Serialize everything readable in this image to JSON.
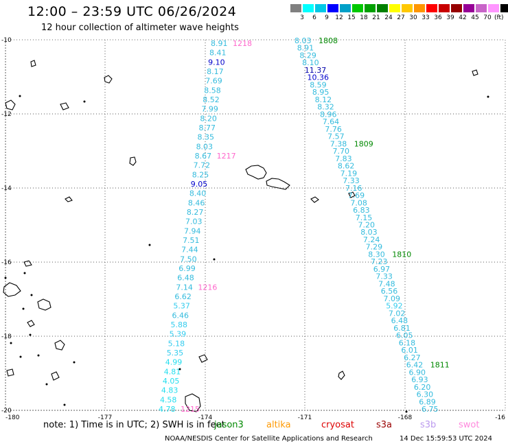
{
  "header": {
    "title": "12:00 – 23:59 UTC 06/26/2024",
    "subtitle": "12 hour collection of altimeter wave heights"
  },
  "legend": {
    "colors": [
      "#808080",
      "#00ffff",
      "#00c8e6",
      "#0000ff",
      "#00a0c8",
      "#00c800",
      "#00a000",
      "#008000",
      "#ffff00",
      "#ffc800",
      "#ff9600",
      "#ff0000",
      "#c80000",
      "#960000",
      "#960096",
      "#c864c8",
      "#ff96ff",
      "#000000"
    ],
    "labels": [
      "3",
      "6",
      "9",
      "12",
      "15",
      "18",
      "21",
      "24",
      "27",
      "30",
      "33",
      "36",
      "39",
      "42",
      "45",
      "70"
    ],
    "unit": "(ft)"
  },
  "axes": {
    "lon_labels": [
      "-180",
      "-177",
      "-174",
      "-171",
      "-168",
      "-16"
    ],
    "lat_labels": [
      "-10",
      "-12",
      "-14",
      "-16",
      "-18",
      "-20"
    ]
  },
  "tracks": [
    {
      "name": "west-track",
      "label_color": "#33bbdd",
      "points": [
        {
          "v": "8.91",
          "c": "#33bbdd"
        },
        {
          "v": "8.41",
          "c": "#33bbdd"
        },
        {
          "v": "9.10",
          "c": "#0000cc"
        },
        {
          "v": "8.17",
          "c": "#33bbdd"
        },
        {
          "v": "7.69",
          "c": "#33bbdd"
        },
        {
          "v": "8.58",
          "c": "#33bbdd"
        },
        {
          "v": "8.52",
          "c": "#33bbdd"
        },
        {
          "v": "7.99",
          "c": "#33bbdd"
        },
        {
          "v": "8.20",
          "c": "#33bbdd"
        },
        {
          "v": "8.77",
          "c": "#33bbdd"
        },
        {
          "v": "8.35",
          "c": "#33bbdd"
        },
        {
          "v": "8.03",
          "c": "#33bbdd"
        },
        {
          "v": "8.67",
          "c": "#33bbdd"
        },
        {
          "v": "7.72",
          "c": "#33bbdd"
        },
        {
          "v": "8.25",
          "c": "#33bbdd"
        },
        {
          "v": "9.05",
          "c": "#0000cc"
        },
        {
          "v": "8.40",
          "c": "#33bbdd"
        },
        {
          "v": "8.46",
          "c": "#33bbdd"
        },
        {
          "v": "8.27",
          "c": "#33bbdd"
        },
        {
          "v": "7.03",
          "c": "#33bbdd"
        },
        {
          "v": "7.94",
          "c": "#33bbdd"
        },
        {
          "v": "7.51",
          "c": "#33bbdd"
        },
        {
          "v": "7.44",
          "c": "#33bbdd"
        },
        {
          "v": "7.50",
          "c": "#33bbdd"
        },
        {
          "v": "6.99",
          "c": "#33bbdd"
        },
        {
          "v": "6.48",
          "c": "#33bbdd"
        },
        {
          "v": "7.14",
          "c": "#33bbdd"
        },
        {
          "v": "6.62",
          "c": "#33bbdd"
        },
        {
          "v": "5.37",
          "c": "#33ccee"
        },
        {
          "v": "6.46",
          "c": "#33bbdd"
        },
        {
          "v": "5.88",
          "c": "#33ccee"
        },
        {
          "v": "5.39",
          "c": "#33ccee"
        },
        {
          "v": "5.18",
          "c": "#33ccee"
        },
        {
          "v": "5.35",
          "c": "#33ccee"
        },
        {
          "v": "4.99",
          "c": "#22ddee"
        },
        {
          "v": "4.81",
          "c": "#22ddee"
        },
        {
          "v": "4.05",
          "c": "#22ddee"
        },
        {
          "v": "4.83",
          "c": "#22ddee"
        },
        {
          "v": "4.58",
          "c": "#22ddee"
        },
        {
          "v": "4.78",
          "c": "#22ddee"
        }
      ],
      "times": [
        {
          "t": "1218",
          "i": 0
        },
        {
          "t": "1217",
          "i": 12
        },
        {
          "t": "1216",
          "i": 26
        },
        {
          "t": "1215",
          "i": 39
        }
      ],
      "time_color": "#ff66cc"
    },
    {
      "name": "east-track",
      "label_color": "#33bbdd",
      "points": [
        {
          "v": "8.03",
          "c": "#33bbdd"
        },
        {
          "v": "8.91",
          "c": "#33bbdd"
        },
        {
          "v": "8.29",
          "c": "#33bbdd"
        },
        {
          "v": "8.10",
          "c": "#33bbdd"
        },
        {
          "v": "11.37",
          "c": "#0000aa"
        },
        {
          "v": "10.36",
          "c": "#0000cc"
        },
        {
          "v": "8.59",
          "c": "#33bbdd"
        },
        {
          "v": "8.95",
          "c": "#33bbdd"
        },
        {
          "v": "8.12",
          "c": "#33bbdd"
        },
        {
          "v": "8.32",
          "c": "#33bbdd"
        },
        {
          "v": "8.96",
          "c": "#33bbdd"
        },
        {
          "v": "7.64",
          "c": "#33bbdd"
        },
        {
          "v": "7.76",
          "c": "#33bbdd"
        },
        {
          "v": "7.57",
          "c": "#33bbdd"
        },
        {
          "v": "7.38",
          "c": "#33bbdd"
        },
        {
          "v": "7.70",
          "c": "#33bbdd"
        },
        {
          "v": "7.83",
          "c": "#33bbdd"
        },
        {
          "v": "8.62",
          "c": "#33bbdd"
        },
        {
          "v": "7.19",
          "c": "#33bbdd"
        },
        {
          "v": "7.33",
          "c": "#33bbdd"
        },
        {
          "v": "7.16",
          "c": "#33bbdd"
        },
        {
          "v": "7.69",
          "c": "#33bbdd"
        },
        {
          "v": "7.08",
          "c": "#33bbdd"
        },
        {
          "v": "6.83",
          "c": "#33bbdd"
        },
        {
          "v": "7.15",
          "c": "#33bbdd"
        },
        {
          "v": "7.20",
          "c": "#33bbdd"
        },
        {
          "v": "8.03",
          "c": "#33bbdd"
        },
        {
          "v": "7.24",
          "c": "#33bbdd"
        },
        {
          "v": "7.29",
          "c": "#33bbdd"
        },
        {
          "v": "8.30",
          "c": "#33bbdd"
        },
        {
          "v": "7.23",
          "c": "#33bbdd"
        },
        {
          "v": "6.97",
          "c": "#33bbdd"
        },
        {
          "v": "7.33",
          "c": "#33bbdd"
        },
        {
          "v": "7.48",
          "c": "#33bbdd"
        },
        {
          "v": "6.56",
          "c": "#33bbdd"
        },
        {
          "v": "7.09",
          "c": "#33bbdd"
        },
        {
          "v": "5.92",
          "c": "#33ccee"
        },
        {
          "v": "7.02",
          "c": "#33bbdd"
        },
        {
          "v": "6.48",
          "c": "#33bbdd"
        },
        {
          "v": "6.81",
          "c": "#33bbdd"
        },
        {
          "v": "6.05",
          "c": "#33bbdd"
        },
        {
          "v": "6.18",
          "c": "#33bbdd"
        },
        {
          "v": "6.01",
          "c": "#33bbdd"
        },
        {
          "v": "6.27",
          "c": "#33bbdd"
        },
        {
          "v": "6.42",
          "c": "#33bbdd"
        },
        {
          "v": "6.90",
          "c": "#33bbdd"
        },
        {
          "v": "6.93",
          "c": "#33bbdd"
        },
        {
          "v": "6.20",
          "c": "#33bbdd"
        },
        {
          "v": "6.30",
          "c": "#33bbdd"
        },
        {
          "v": "6.89",
          "c": "#33bbdd"
        },
        {
          "v": "6.75",
          "c": "#33bbdd"
        }
      ],
      "times": [
        {
          "t": "1808",
          "i": 0
        },
        {
          "t": "1809",
          "i": 14
        },
        {
          "t": "1810",
          "i": 29
        },
        {
          "t": "1811",
          "i": 44
        }
      ],
      "time_color": "#008800"
    }
  ],
  "footer": {
    "note": "note:  1) Time is in UTC; 2) SWH is in feet",
    "satellites": [
      {
        "name": "jason3",
        "color": "#008800"
      },
      {
        "name": "altika",
        "color": "#ff9900"
      },
      {
        "name": "cryosat",
        "color": "#dd0000"
      },
      {
        "name": "s3a",
        "color": "#990000"
      },
      {
        "name": "s3b",
        "color": "#bb99ee"
      },
      {
        "name": "swot",
        "color": "#ff88dd"
      }
    ],
    "credit": "NOAA/NESDIS Center for Satellite Applications and Research",
    "generated": "14 Dec 15:59:53 UTC 2024"
  }
}
